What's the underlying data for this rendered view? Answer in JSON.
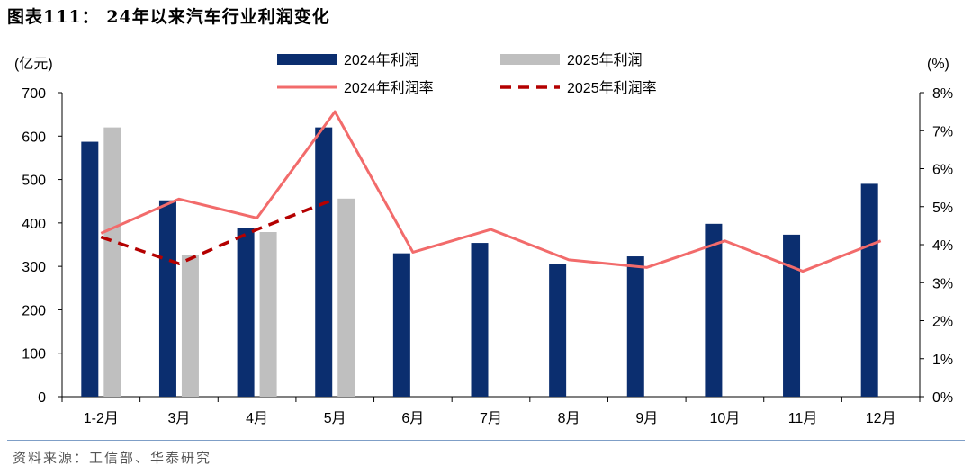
{
  "figure": {
    "title": "图表111： 24年以来汽车行业利润变化",
    "source": "资料来源：工信部、华泰研究"
  },
  "chart_data": {
    "type": "bar",
    "categories": [
      "1-2月",
      "3月",
      "4月",
      "5月",
      "6月",
      "7月",
      "8月",
      "9月",
      "10月",
      "11月",
      "12月"
    ],
    "y_left_label": "(亿元)",
    "y_right_label": "(%)",
    "y_left_lim": [
      0,
      700
    ],
    "y_left_ticks": [
      0,
      100,
      200,
      300,
      400,
      500,
      600,
      700
    ],
    "y_right_lim": [
      0,
      8
    ],
    "y_right_ticks": [
      "0%",
      "1%",
      "2%",
      "3%",
      "4%",
      "5%",
      "6%",
      "7%",
      "8%"
    ],
    "grid": false,
    "legend_position": "top",
    "series": [
      {
        "name": "2024年利润",
        "type": "bar",
        "axis": "left",
        "color": "#0b2e6f",
        "values": [
          587,
          452,
          388,
          620,
          330,
          354,
          305,
          323,
          398,
          373,
          490
        ]
      },
      {
        "name": "2025年利润",
        "type": "bar",
        "axis": "left",
        "color": "#bfbfbf",
        "values": [
          620,
          327,
          379,
          456,
          null,
          null,
          null,
          null,
          null,
          null,
          null
        ]
      },
      {
        "name": "2024年利润率",
        "type": "line",
        "axis": "right",
        "color": "#f26b6b",
        "style": "solid",
        "values": [
          4.3,
          5.2,
          4.7,
          7.5,
          3.8,
          4.4,
          3.6,
          3.4,
          4.1,
          3.3,
          4.1
        ]
      },
      {
        "name": "2025年利润率",
        "type": "line",
        "axis": "right",
        "color": "#b40000",
        "style": "dashed",
        "values": [
          4.2,
          3.5,
          4.4,
          5.2,
          null,
          null,
          null,
          null,
          null,
          null,
          null
        ]
      }
    ]
  }
}
